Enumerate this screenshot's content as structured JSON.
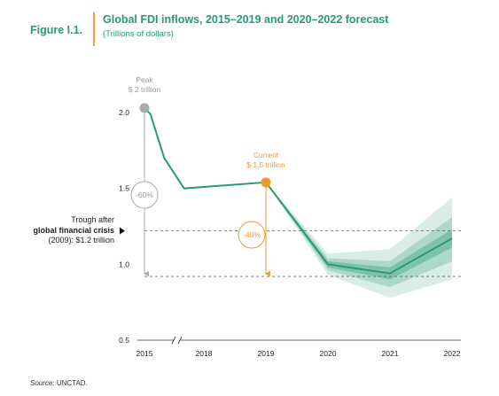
{
  "figure": {
    "label": "Figure I.1.",
    "title": "Global FDI inflows, 2015–2019 and 2020–2022 forecast",
    "subtitle": "(Trillions of dollars)",
    "source_label": "Source:",
    "source_text": "UNCTAD."
  },
  "colors": {
    "line": "#2a9a72",
    "band": "#2a9a72",
    "peak": "#aaaaaa",
    "current": "#ef9a2d",
    "title": "#2a9a72",
    "text": "#222222"
  },
  "annotations": {
    "peak_label": "Peak",
    "peak_value": "$ 2 trillion",
    "current_label": "Current",
    "current_value": "$ 1.5 trillion",
    "trough_line1": "Trough after",
    "trough_line2_bold": "global financial crisis",
    "trough_line3": "(2009): $1.2 trillion",
    "pct_from_peak": "-60%",
    "pct_from_current": "-40%"
  },
  "chart_data": {
    "type": "line",
    "title": "Global FDI inflows, 2015–2019 and 2020–2022 forecast",
    "ylabel": "(Trillions of dollars)",
    "x_ticks": [
      "2015",
      "2018",
      "2019",
      "2020",
      "2021",
      "2022"
    ],
    "y_ticks": [
      "0.5",
      "1.0",
      "1.5",
      "2.0"
    ],
    "ylim": [
      0.5,
      2.05
    ],
    "axis_break": "between 2015 and 2018",
    "grid": false,
    "historical": {
      "x": [
        2015,
        2015.3,
        2016,
        2017,
        2018,
        2019
      ],
      "y": [
        2.03,
        1.99,
        1.7,
        1.5,
        1.51,
        1.54
      ]
    },
    "forecast": {
      "x": [
        2019,
        2020,
        2021,
        2022
      ],
      "y": [
        1.54,
        1.0,
        0.94,
        1.17
      ],
      "band_outer_low": [
        1.54,
        0.93,
        0.78,
        0.9
      ],
      "band_outer_high": [
        1.54,
        1.07,
        1.1,
        1.44
      ],
      "band_mid_low": [
        1.54,
        0.96,
        0.85,
        1.02
      ],
      "band_mid_high": [
        1.54,
        1.04,
        1.02,
        1.31
      ],
      "band_inner_low": [
        1.54,
        0.98,
        0.9,
        1.11
      ],
      "band_inner_high": [
        1.54,
        1.02,
        0.98,
        1.23
      ]
    },
    "peak": {
      "x": 2015,
      "y": 2.03
    },
    "current": {
      "x": 2019,
      "y": 1.54
    },
    "reference_lines": [
      {
        "y": 1.22,
        "meaning": "trough after global financial crisis (2009)"
      },
      {
        "y": 0.92,
        "meaning": "forecast low"
      }
    ]
  }
}
